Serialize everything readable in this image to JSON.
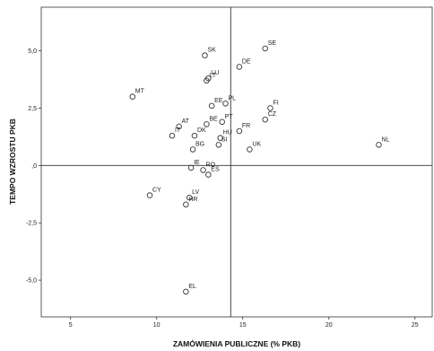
{
  "chart_data": {
    "type": "scatter",
    "title": "",
    "xlabel": "ZAMÓWIENIA PUBLICZNE (% PKB)",
    "ylabel": "TEMPO WZROSTU PKB",
    "xlim": [
      3.3,
      26.0
    ],
    "ylim": [
      -6.6,
      6.9
    ],
    "xticks": [
      5,
      10,
      15,
      20,
      25
    ],
    "xtick_labels": [
      "5",
      "10",
      "15",
      "20",
      "25"
    ],
    "yticks": [
      -5,
      -2.5,
      0,
      2.5,
      5
    ],
    "ytick_labels": [
      "-5,0",
      "-2,5",
      ",0",
      "2,5",
      "5,0"
    ],
    "reference_lines": {
      "x": 14.3,
      "y": 0
    },
    "grid": false,
    "legend": "none",
    "points": [
      {
        "label": "SK",
        "x": 12.8,
        "y": 4.8
      },
      {
        "label": "SE",
        "x": 16.3,
        "y": 5.1
      },
      {
        "label": "DE",
        "x": 14.8,
        "y": 4.3
      },
      {
        "label": "LU",
        "x": 13.0,
        "y": 3.8
      },
      {
        "label": "LT",
        "x": 12.9,
        "y": 3.7
      },
      {
        "label": "MT",
        "x": 8.6,
        "y": 3.0
      },
      {
        "label": "EE",
        "x": 13.2,
        "y": 2.6
      },
      {
        "label": "PL",
        "x": 14.0,
        "y": 2.7
      },
      {
        "label": "FI",
        "x": 16.6,
        "y": 2.5
      },
      {
        "label": "AT",
        "x": 11.3,
        "y": 1.7
      },
      {
        "label": "BE",
        "x": 12.9,
        "y": 1.8
      },
      {
        "label": "PT",
        "x": 13.8,
        "y": 1.9
      },
      {
        "label": "CZ",
        "x": 16.3,
        "y": 2.0
      },
      {
        "label": "DK",
        "x": 12.2,
        "y": 1.3
      },
      {
        "label": "FR",
        "x": 14.8,
        "y": 1.5
      },
      {
        "label": "IT",
        "x": 10.9,
        "y": 1.3
      },
      {
        "label": "HU",
        "x": 13.7,
        "y": 1.2
      },
      {
        "label": "BG",
        "x": 12.1,
        "y": 0.7
      },
      {
        "label": "SI",
        "x": 13.6,
        "y": 0.9
      },
      {
        "label": "UK",
        "x": 15.4,
        "y": 0.7
      },
      {
        "label": "NL",
        "x": 22.9,
        "y": 0.9
      },
      {
        "label": "IE",
        "x": 12.0,
        "y": -0.1
      },
      {
        "label": "RO",
        "x": 12.7,
        "y": -0.2
      },
      {
        "label": "ES",
        "x": 13.0,
        "y": -0.4
      },
      {
        "label": "CY",
        "x": 9.6,
        "y": -1.3
      },
      {
        "label": "LV",
        "x": 11.9,
        "y": -1.4
      },
      {
        "label": "HR",
        "x": 11.7,
        "y": -1.7
      },
      {
        "label": "EL",
        "x": 11.7,
        "y": -5.5
      }
    ]
  }
}
